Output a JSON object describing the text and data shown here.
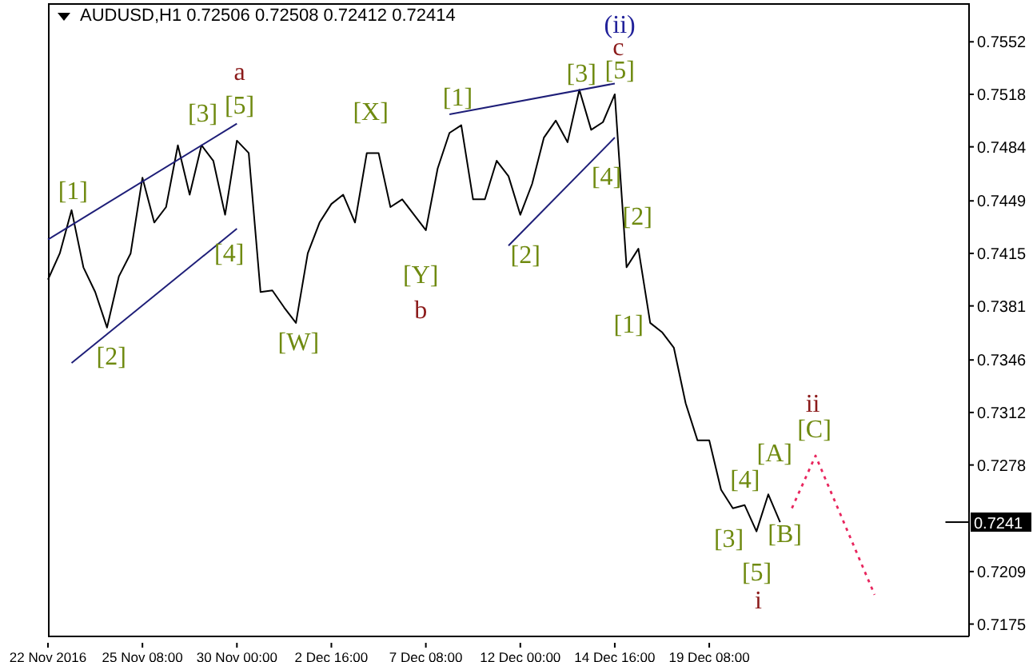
{
  "chart_data": {
    "type": "line",
    "title": "AUDUSD,H1  0.72506 0.72508 0.72412 0.72414",
    "categories": [
      "22 Nov 2016",
      null,
      null,
      null,
      null,
      null,
      null,
      null,
      "25 Nov 08:00",
      null,
      null,
      null,
      null,
      null,
      null,
      null,
      "30 Nov 00:00",
      null,
      null,
      null,
      null,
      null,
      null,
      null,
      "2 Dec 16:00",
      null,
      null,
      null,
      null,
      null,
      null,
      null,
      "7 Dec 08:00",
      null,
      null,
      null,
      null,
      null,
      null,
      null,
      "12 Dec 00:00",
      null,
      null,
      null,
      null,
      null,
      null,
      null,
      "14 Dec 16:00",
      null,
      null,
      null,
      null,
      null,
      null,
      null,
      "19 Dec 08:00",
      null,
      null,
      null,
      null,
      null,
      null,
      null,
      null,
      null,
      null,
      null,
      null,
      null,
      null,
      null,
      null,
      null,
      null,
      null,
      null,
      null,
      null
    ],
    "ylim": [
      0.7167,
      0.7577
    ],
    "yticks": [
      0.7552,
      0.7518,
      0.7484,
      0.7449,
      0.7415,
      0.7381,
      0.7346,
      0.7312,
      0.7278,
      0.7209,
      0.7175
    ],
    "grid": false,
    "legend": false,
    "marker": "none",
    "series": [
      {
        "color": "#000000",
        "line_style": "solid",
        "values": [
          0.7398,
          0.7415,
          0.7443,
          0.7406,
          0.739,
          0.7367,
          0.74,
          0.7415,
          0.7464,
          0.7435,
          0.7445,
          0.7485,
          0.7453,
          0.7485,
          0.7475,
          0.744,
          0.7488,
          0.748,
          0.739,
          0.7391,
          0.738,
          0.737,
          0.7415,
          0.7435,
          0.7447,
          0.7453,
          0.7435,
          0.748,
          0.748,
          0.7445,
          0.745,
          0.744,
          0.743,
          0.747,
          0.7493,
          0.7498,
          0.745,
          0.745,
          0.7475,
          0.7465,
          0.744,
          0.746,
          0.749,
          0.7501,
          0.7487,
          0.7521,
          0.7495,
          0.75,
          0.7518,
          0.7406,
          0.7418,
          0.737,
          0.7364,
          0.7354,
          0.7318,
          0.7294,
          0.7294,
          0.7262,
          0.725,
          0.7252,
          0.7235,
          0.7259,
          0.7241,
          null,
          null,
          null,
          null,
          null,
          null,
          null,
          null,
          null,
          null,
          null,
          null,
          null,
          null,
          null,
          null
        ]
      },
      {
        "color": "#e8265e",
        "line_style": "dotted",
        "values": [
          null,
          null,
          null,
          null,
          null,
          null,
          null,
          null,
          null,
          null,
          null,
          null,
          null,
          null,
          null,
          null,
          null,
          null,
          null,
          null,
          null,
          null,
          null,
          null,
          null,
          null,
          null,
          null,
          null,
          null,
          null,
          null,
          null,
          null,
          null,
          null,
          null,
          null,
          null,
          null,
          null,
          null,
          null,
          null,
          null,
          null,
          null,
          null,
          null,
          null,
          null,
          null,
          null,
          null,
          null,
          null,
          null,
          null,
          null,
          null,
          null,
          null,
          null,
          0.725,
          0.7267,
          0.7284,
          0.7266,
          0.7248,
          0.723,
          0.7212,
          0.7194,
          null,
          null,
          null,
          null,
          null,
          null,
          null,
          null
        ]
      },
      {
        "color": "#1e1e78",
        "line_style": "solid",
        "values": [
          0.7424,
          null,
          null,
          null,
          null,
          null,
          null,
          null,
          null,
          null,
          null,
          null,
          null,
          null,
          null,
          null,
          0.7499,
          null,
          null,
          null,
          null,
          null,
          null,
          null,
          null,
          null,
          null,
          null,
          null,
          null,
          null,
          null,
          null,
          null,
          null,
          null,
          null,
          null,
          null,
          null,
          null,
          null,
          null,
          null,
          null,
          null,
          null,
          null,
          null,
          null,
          null,
          null,
          null,
          null,
          null,
          null,
          null,
          null,
          null,
          null,
          null,
          null,
          null,
          null,
          null,
          null,
          null,
          null,
          null,
          null,
          null,
          null,
          null,
          null,
          null,
          null,
          null,
          null,
          null
        ]
      },
      {
        "color": "#1e1e78",
        "line_style": "solid",
        "values": [
          null,
          null,
          0.7344,
          null,
          null,
          null,
          null,
          null,
          null,
          null,
          null,
          null,
          null,
          null,
          null,
          null,
          0.7431,
          null,
          null,
          null,
          null,
          null,
          null,
          null,
          null,
          null,
          null,
          null,
          null,
          null,
          null,
          null,
          null,
          null,
          null,
          null,
          null,
          null,
          null,
          null,
          null,
          null,
          null,
          null,
          null,
          null,
          null,
          null,
          null,
          null,
          null,
          null,
          null,
          null,
          null,
          null,
          null,
          null,
          null,
          null,
          null,
          null,
          null,
          null,
          null,
          null,
          null,
          null,
          null,
          null,
          null,
          null,
          null,
          null,
          null,
          null,
          null,
          null,
          null
        ]
      },
      {
        "color": "#1e1e78",
        "line_style": "solid",
        "values": [
          null,
          null,
          null,
          null,
          null,
          null,
          null,
          null,
          null,
          null,
          null,
          null,
          null,
          null,
          null,
          null,
          null,
          null,
          null,
          null,
          null,
          null,
          null,
          null,
          null,
          null,
          null,
          null,
          null,
          null,
          null,
          null,
          null,
          null,
          0.7505,
          null,
          null,
          null,
          null,
          null,
          null,
          null,
          null,
          null,
          null,
          null,
          null,
          null,
          0.7525,
          null,
          null,
          null,
          null,
          null,
          null,
          null,
          null,
          null,
          null,
          null,
          null,
          null,
          null,
          null,
          null,
          null,
          null,
          null,
          null,
          null,
          null,
          null,
          null,
          null,
          null,
          null,
          null,
          null,
          null
        ]
      },
      {
        "color": "#1e1e78",
        "line_style": "solid",
        "values": [
          null,
          null,
          null,
          null,
          null,
          null,
          null,
          null,
          null,
          null,
          null,
          null,
          null,
          null,
          null,
          null,
          null,
          null,
          null,
          null,
          null,
          null,
          null,
          null,
          null,
          null,
          null,
          null,
          null,
          null,
          null,
          null,
          null,
          null,
          null,
          null,
          null,
          null,
          null,
          0.742,
          null,
          null,
          null,
          null,
          null,
          null,
          null,
          null,
          0.749,
          null,
          null,
          null,
          null,
          null,
          null,
          null,
          null,
          null,
          null,
          null,
          null,
          null,
          null,
          null,
          null,
          null,
          null,
          null,
          null,
          null,
          null,
          null,
          null,
          null,
          null,
          null,
          null,
          null,
          null
        ]
      }
    ],
    "ref_lines": [
      {
        "axis": "y",
        "value": 0.7241,
        "label": "0.7241"
      }
    ],
    "annotations": [
      "[1]",
      "[2]",
      "[3]",
      "[4]",
      "[5]",
      "a",
      "[W]",
      "[X]",
      "[Y]",
      "b",
      "[1]",
      "[2]",
      "[3]",
      "[5]",
      "c",
      "(ii)",
      "[4]",
      "[2]",
      "[1]",
      "[3]",
      "[4]",
      "[5]",
      "i",
      "[A]",
      "[B]",
      "[C]",
      "ii"
    ]
  }
}
